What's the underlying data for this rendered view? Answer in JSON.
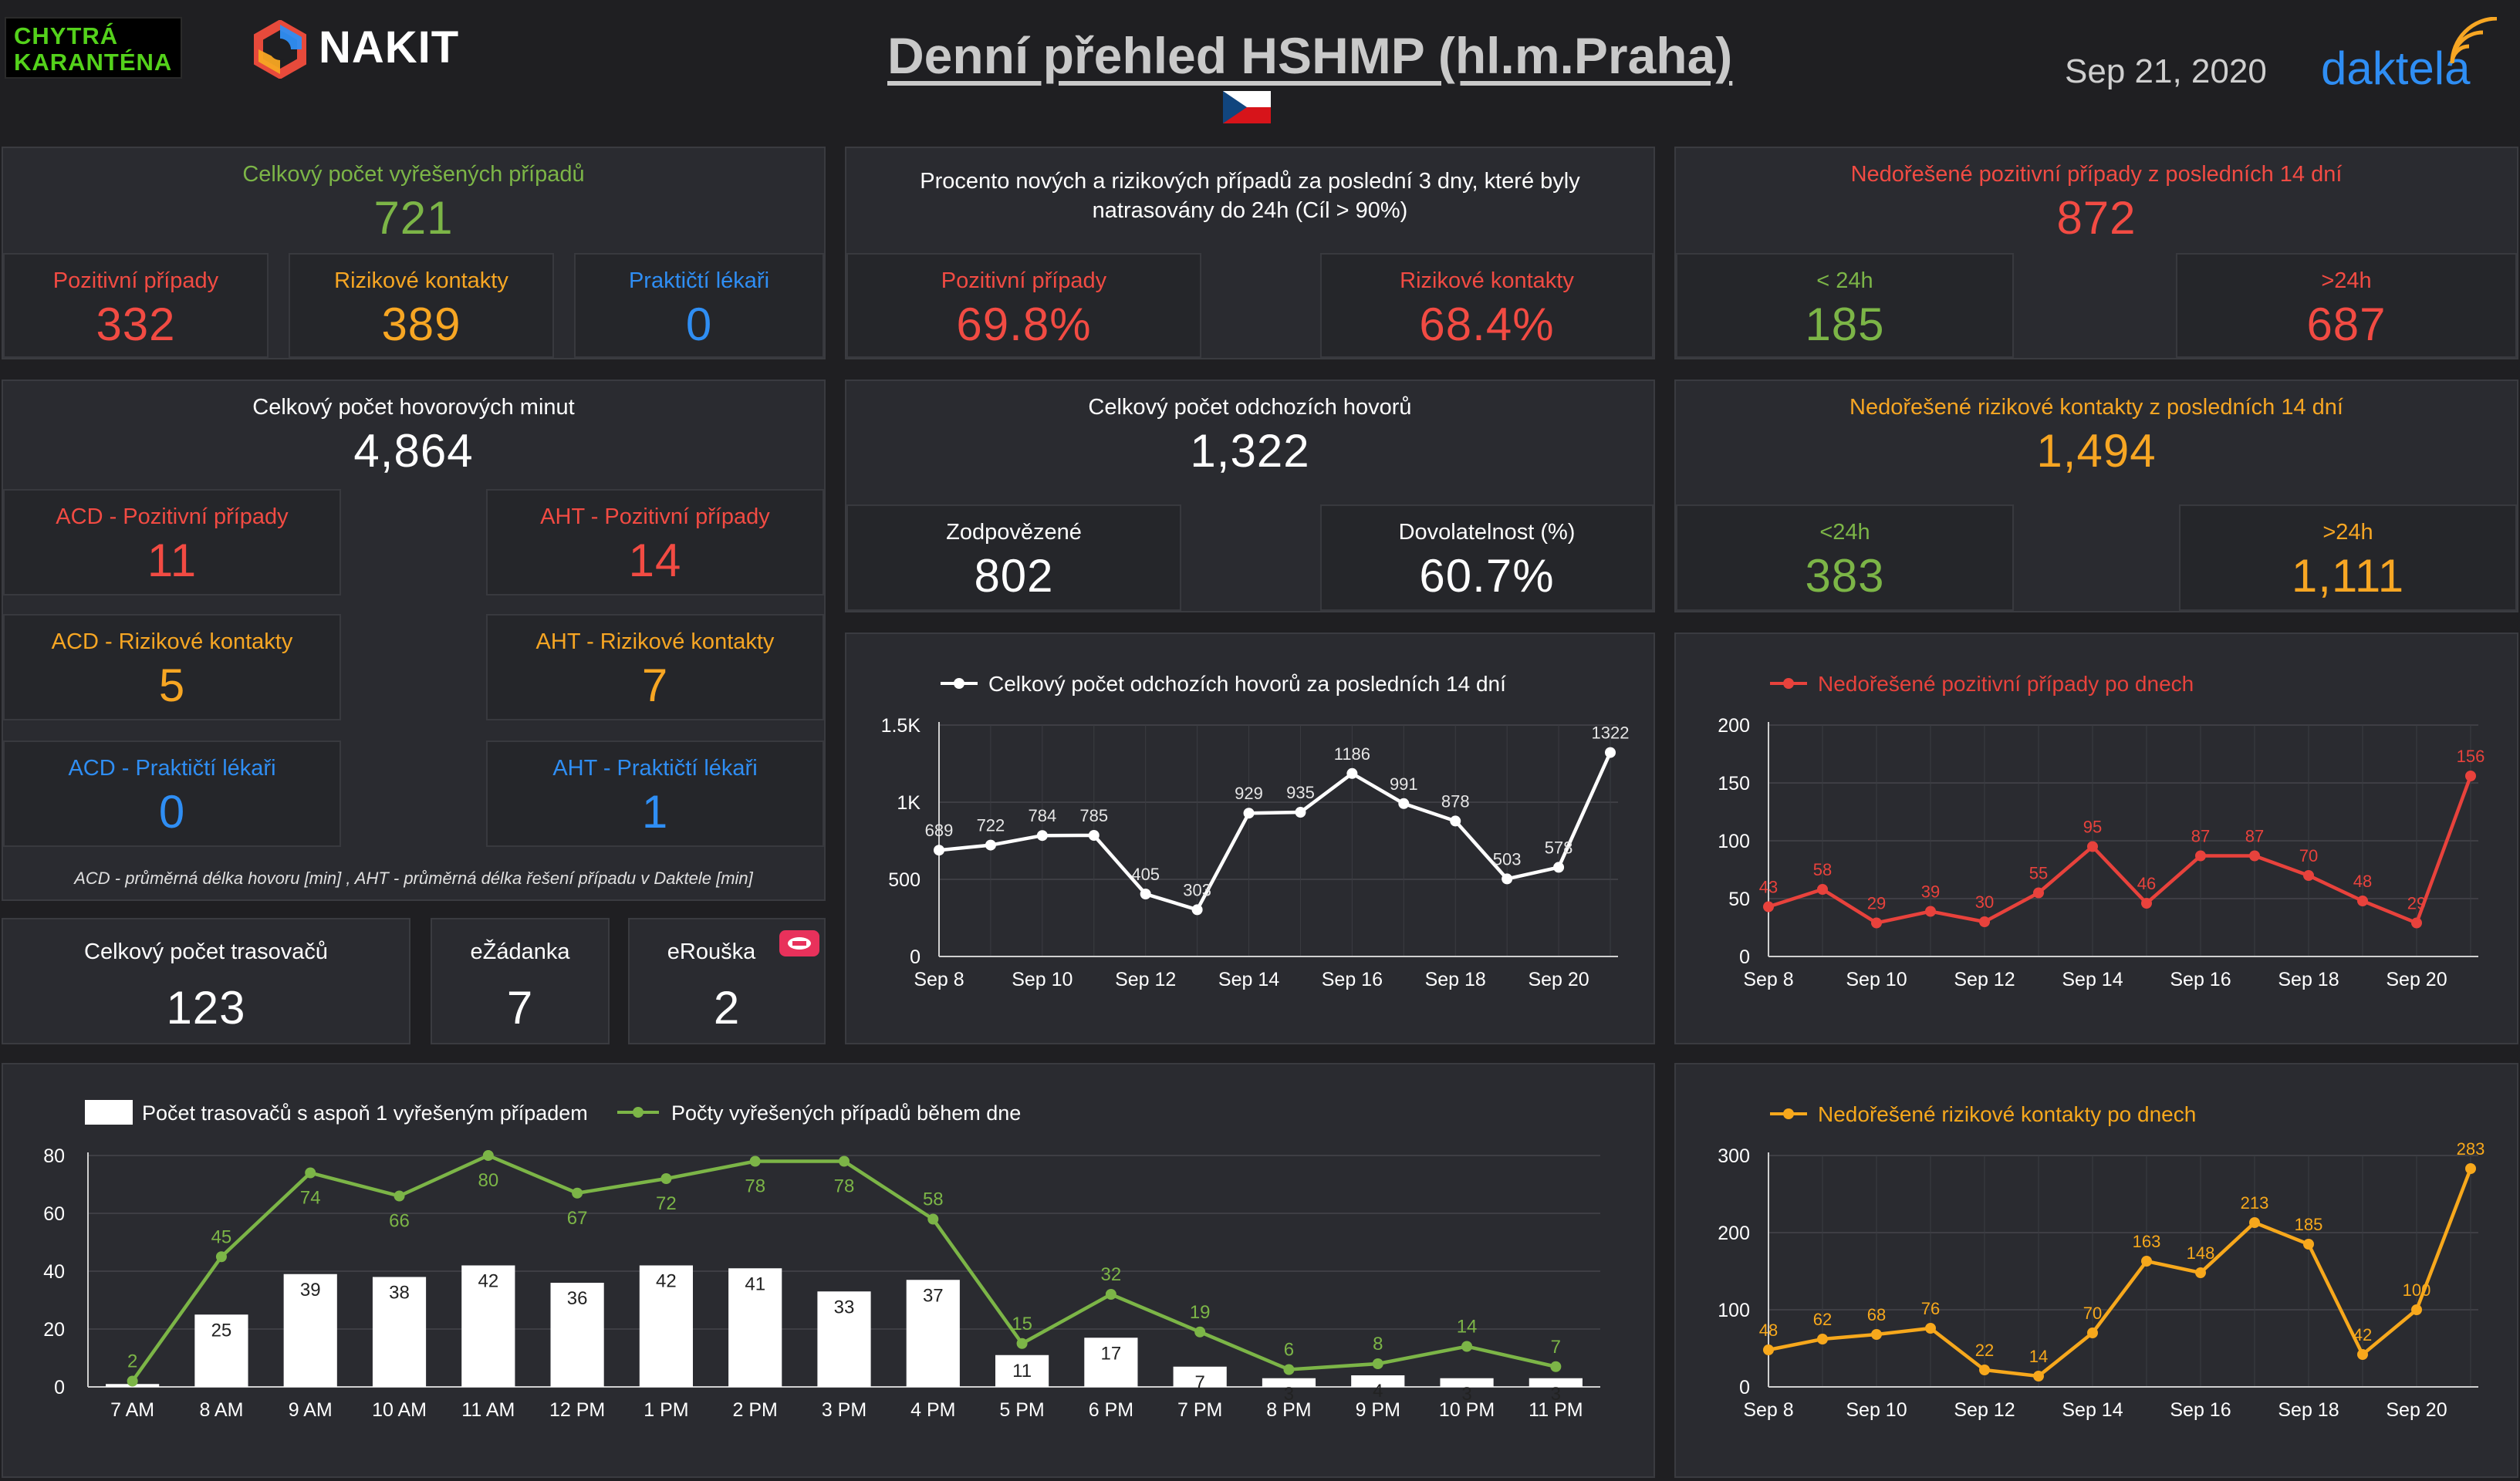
{
  "header": {
    "logo_left": "CHYTRÁ KARANTÉNA",
    "brand": "NAKIT",
    "title": "Denní přehled HSHMP (hl.m.Praha)",
    "date": "Sep 21, 2020",
    "brand_right": "daktela"
  },
  "resolved": {
    "label": "Celkový počet vyřešených případů",
    "value": "721",
    "positive_label": "Pozitivní případy",
    "positive_value": "332",
    "risk_label": "Rizikové kontakty",
    "risk_value": "389",
    "doctors_label": "Praktičtí lékaři",
    "doctors_value": "0"
  },
  "traced": {
    "label": "Procento nových a rizikových případů za poslední 3 dny, které byly natrasovány do 24h (Cíl > 90%)",
    "positive_label": "Pozitivní případy",
    "positive_value": "69.8%",
    "risk_label": "Rizikové kontakty",
    "risk_value": "68.4%"
  },
  "unresolved_positive": {
    "label": "Nedořešené pozitivní případy z posledních 14 dní",
    "value": "872",
    "lt_label": "< 24h",
    "lt_value": "185",
    "gt_label": ">24h",
    "gt_value": "687"
  },
  "minutes": {
    "label": "Celkový počet hovorových minut",
    "value": "4,864",
    "acd_pos_label": "ACD - Pozitivní případy",
    "acd_pos_value": "11",
    "aht_pos_label": "AHT - Pozitivní případy",
    "aht_pos_value": "14",
    "acd_risk_label": "ACD - Rizikové kontakty",
    "acd_risk_value": "5",
    "aht_risk_label": "AHT - Rizikové kontakty",
    "aht_risk_value": "7",
    "acd_doc_label": "ACD - Praktičtí lékaři",
    "acd_doc_value": "0",
    "aht_doc_label": "AHT - Praktičtí lékaři",
    "aht_doc_value": "1",
    "footnote": "ACD - průměrná délka hovoru [min] , AHT - průměrná délka řešení případu v Daktele [min]"
  },
  "calls": {
    "label": "Celkový počet odchozích hovorů",
    "value": "1,322",
    "answered_label": "Zodpovězené",
    "answered_value": "802",
    "reach_label": "Dovolatelnost (%)",
    "reach_value": "60.7%"
  },
  "unresolved_risk": {
    "label": "Nedořešené rizikové kontakty z posledních 14 dní",
    "value": "1,494",
    "lt_label": "<24h",
    "lt_value": "383",
    "gt_label": ">24h",
    "gt_value": "1,111"
  },
  "tracers": {
    "label": "Celkový počet trasovačů",
    "value": "123",
    "ezadanka_label": "eŽádanka",
    "ezadanka_value": "7",
    "erouska_label": "eRouška",
    "erouska_value": "2"
  },
  "chart_data": [
    {
      "id": "calls",
      "type": "line",
      "title": "Celkový počet odchozích hovorů za posledních 14 dní",
      "color": "#ffffff",
      "x": [
        "Sep 8",
        "Sep 9",
        "Sep 10",
        "Sep 11",
        "Sep 12",
        "Sep 13",
        "Sep 14",
        "Sep 15",
        "Sep 16",
        "Sep 17",
        "Sep 18",
        "Sep 19",
        "Sep 20",
        "Sep 21"
      ],
      "xticks": [
        "Sep 8",
        "Sep 10",
        "Sep 12",
        "Sep 14",
        "Sep 16",
        "Sep 18",
        "Sep 20"
      ],
      "values": [
        689,
        722,
        784,
        785,
        405,
        303,
        929,
        935,
        1186,
        991,
        878,
        503,
        578,
        1322
      ],
      "ylim": [
        0,
        1500
      ],
      "yticks": [
        0,
        500,
        1000,
        1500
      ],
      "ytick_labels": [
        "0",
        "500",
        "1K",
        "1.5K"
      ]
    },
    {
      "id": "positive",
      "type": "line",
      "title": "Nedořešené pozitivní případy po dnech",
      "color": "#e8423c",
      "x": [
        "Sep 8",
        "Sep 9",
        "Sep 10",
        "Sep 11",
        "Sep 12",
        "Sep 13",
        "Sep 14",
        "Sep 15",
        "Sep 16",
        "Sep 17",
        "Sep 18",
        "Sep 19",
        "Sep 20",
        "Sep 21"
      ],
      "xticks": [
        "Sep 8",
        "Sep 10",
        "Sep 12",
        "Sep 14",
        "Sep 16",
        "Sep 18",
        "Sep 20"
      ],
      "values": [
        43,
        58,
        29,
        39,
        30,
        55,
        95,
        46,
        87,
        87,
        70,
        48,
        29,
        156
      ],
      "ylim": [
        0,
        200
      ],
      "yticks": [
        0,
        50,
        100,
        150,
        200
      ],
      "ytick_labels": [
        "0",
        "50",
        "100",
        "150",
        "200"
      ]
    },
    {
      "id": "risk",
      "type": "line",
      "title": "Nedořešené rizikové kontakty po dnech",
      "color": "#f7a81c",
      "x": [
        "Sep 8",
        "Sep 9",
        "Sep 10",
        "Sep 11",
        "Sep 12",
        "Sep 13",
        "Sep 14",
        "Sep 15",
        "Sep 16",
        "Sep 17",
        "Sep 18",
        "Sep 19",
        "Sep 20",
        "Sep 21"
      ],
      "xticks": [
        "Sep 8",
        "Sep 10",
        "Sep 12",
        "Sep 14",
        "Sep 16",
        "Sep 18",
        "Sep 20"
      ],
      "values": [
        48,
        62,
        68,
        76,
        22,
        14,
        70,
        163,
        148,
        213,
        185,
        42,
        100,
        283
      ],
      "ylim": [
        0,
        300
      ],
      "yticks": [
        0,
        100,
        200,
        300
      ],
      "ytick_labels": [
        "0",
        "100",
        "200",
        "300"
      ]
    },
    {
      "id": "hourly",
      "type": "bar",
      "categories": [
        "7 AM",
        "8 AM",
        "9 AM",
        "10 AM",
        "11 AM",
        "12 PM",
        "1 PM",
        "2 PM",
        "3 PM",
        "4 PM",
        "5 PM",
        "6 PM",
        "7 PM",
        "8 PM",
        "9 PM",
        "10 PM",
        "11 PM"
      ],
      "ylim": [
        0,
        80
      ],
      "yticks": [
        0,
        20,
        40,
        60,
        80
      ],
      "series": [
        {
          "name": "Počet trasovačů s aspoň 1 vyřešeným případem",
          "type": "bar",
          "color": "#ffffff",
          "values": [
            1,
            25,
            39,
            38,
            42,
            36,
            42,
            41,
            33,
            37,
            11,
            17,
            7,
            3,
            4,
            3,
            3
          ]
        },
        {
          "name": "Počty vyřešených případů během dne",
          "type": "line",
          "color": "#7cb547",
          "values": [
            2,
            45,
            74,
            66,
            80,
            67,
            72,
            78,
            78,
            58,
            15,
            32,
            19,
            6,
            8,
            14,
            7
          ]
        }
      ]
    }
  ]
}
